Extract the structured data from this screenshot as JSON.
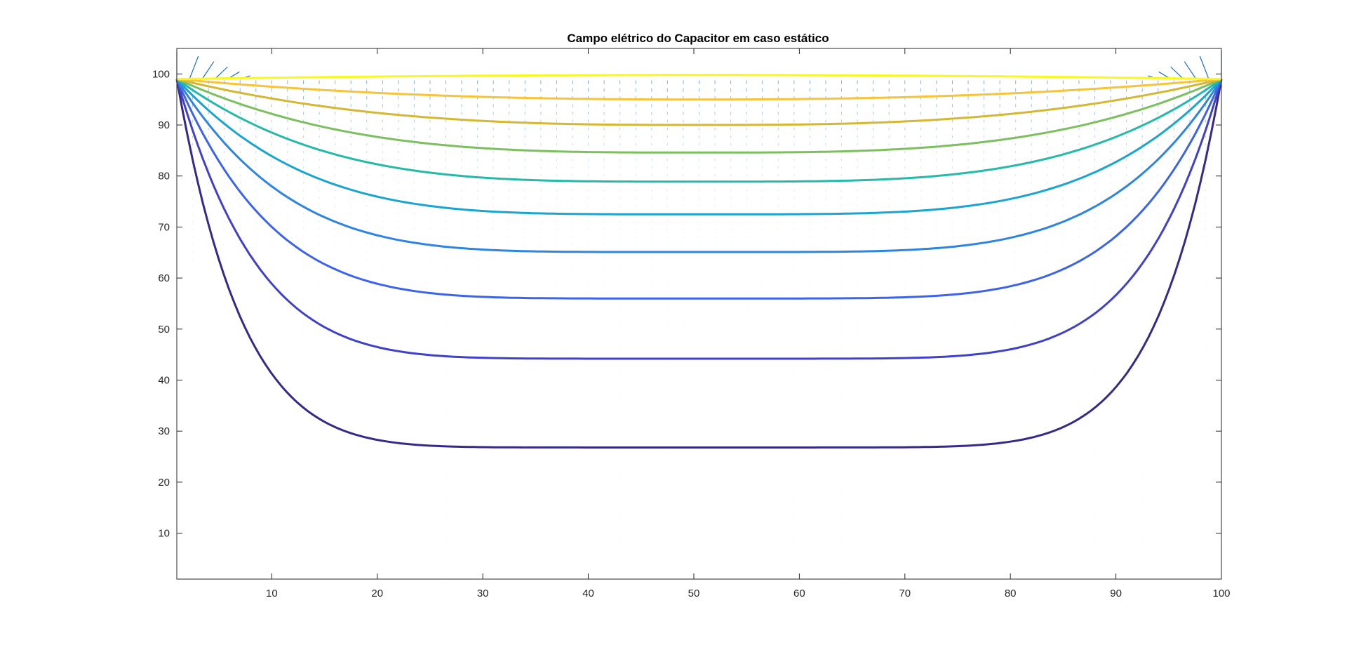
{
  "chart_data": {
    "type": "line",
    "title": "Campo elétrico do Capacitor em caso estático",
    "xlabel": "",
    "ylabel": "",
    "xlim": [
      1,
      100
    ],
    "ylim": [
      1,
      105
    ],
    "x_ticks": [
      10,
      20,
      30,
      40,
      50,
      60,
      70,
      80,
      90,
      100
    ],
    "y_ticks": [
      10,
      20,
      30,
      40,
      50,
      60,
      70,
      80,
      90,
      100
    ],
    "grid": false,
    "box": true,
    "contour_levels": [
      {
        "min_y_at_center": 26.8,
        "color": "#352a87"
      },
      {
        "min_y_at_center": 44.2,
        "color": "#3f42c9"
      },
      {
        "min_y_at_center": 56.0,
        "color": "#3c64e8"
      },
      {
        "min_y_at_center": 65.1,
        "color": "#2d85e0"
      },
      {
        "min_y_at_center": 72.5,
        "color": "#1aa4d0"
      },
      {
        "min_y_at_center": 78.9,
        "color": "#26b8a8"
      },
      {
        "min_y_at_center": 84.6,
        "color": "#7cbf5e"
      },
      {
        "min_y_at_center": 90.0,
        "color": "#d4b733"
      },
      {
        "min_y_at_center": 95.0,
        "color": "#f5c43a"
      },
      {
        "min_y_at_center": 99.8,
        "color": "#f9f720"
      }
    ],
    "contour_endpoints": {
      "x_left": 1,
      "x_right": 100,
      "y": 99
    },
    "quiver": {
      "x_range": [
        1,
        100
      ],
      "y_range": [
        1,
        100
      ],
      "color": "#4a90d9",
      "description_scale": "small"
    }
  }
}
